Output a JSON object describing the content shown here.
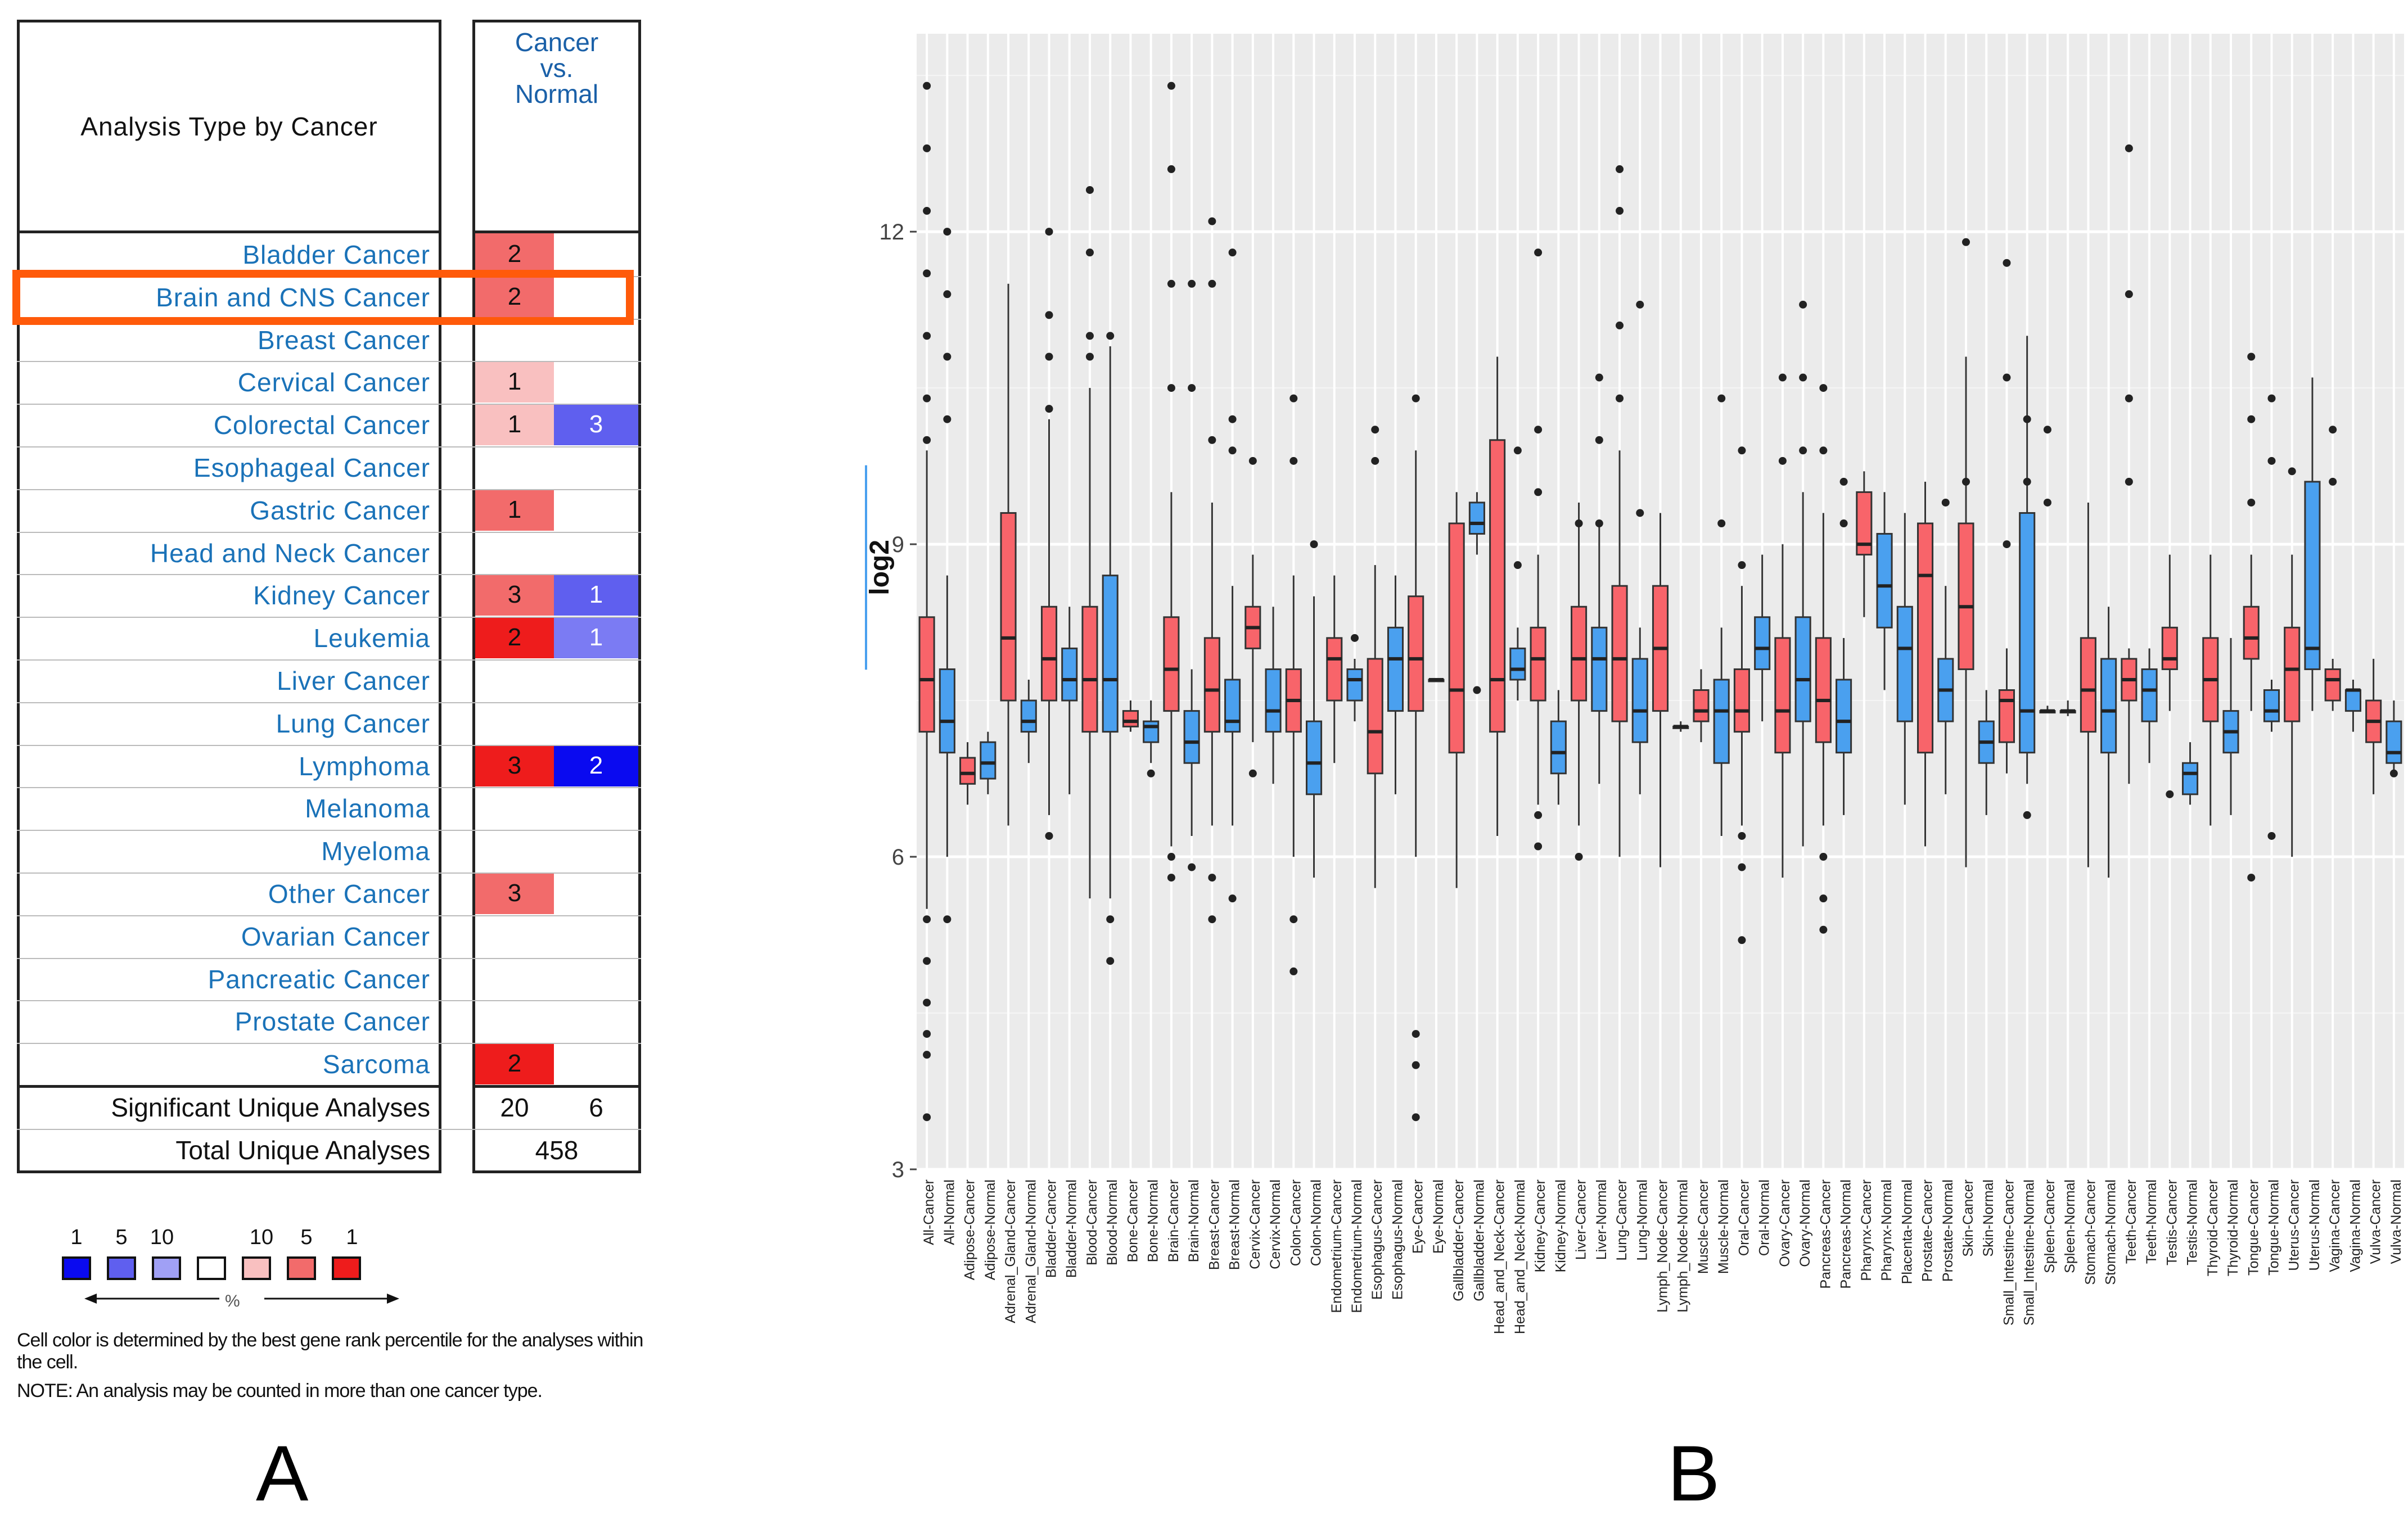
{
  "panel_a": {
    "letter": "A",
    "header_analysis_type": "Analysis Type by Cancer",
    "header_cancer_vs_normal": "Cancer\nvs.\nNormal",
    "rows": [
      {
        "name": "Bladder Cancer",
        "up": "2",
        "down": ""
      },
      {
        "name": "Brain and CNS Cancer",
        "up": "2",
        "down": ""
      },
      {
        "name": "Breast Cancer",
        "up": "",
        "down": ""
      },
      {
        "name": "Cervical Cancer",
        "up": "1",
        "down": ""
      },
      {
        "name": "Colorectal Cancer",
        "up": "1",
        "down": "3"
      },
      {
        "name": "Esophageal Cancer",
        "up": "",
        "down": ""
      },
      {
        "name": "Gastric Cancer",
        "up": "1",
        "down": ""
      },
      {
        "name": "Head and Neck Cancer",
        "up": "",
        "down": ""
      },
      {
        "name": "Kidney Cancer",
        "up": "3",
        "down": "1"
      },
      {
        "name": "Leukemia",
        "up": "2",
        "down": "1"
      },
      {
        "name": "Liver Cancer",
        "up": "",
        "down": ""
      },
      {
        "name": "Lung Cancer",
        "up": "",
        "down": ""
      },
      {
        "name": "Lymphoma",
        "up": "3",
        "down": "2"
      },
      {
        "name": "Melanoma",
        "up": "",
        "down": ""
      },
      {
        "name": "Myeloma",
        "up": "",
        "down": ""
      },
      {
        "name": "Other Cancer",
        "up": "3",
        "down": ""
      },
      {
        "name": "Ovarian Cancer",
        "up": "",
        "down": ""
      },
      {
        "name": "Pancreatic Cancer",
        "up": "",
        "down": ""
      },
      {
        "name": "Prostate Cancer",
        "up": "",
        "down": ""
      },
      {
        "name": "Sarcoma",
        "up": "2",
        "down": ""
      }
    ],
    "cell_colors": {
      "up": [
        "#f26b6b",
        "#f26b6b",
        "",
        "#f9c0c0",
        "#f9c0c0",
        "",
        "#f26b6b",
        "",
        "#f26b6b",
        "#ee1c1c",
        "",
        "",
        "#ee1c1c",
        "",
        "",
        "#f26b6b",
        "",
        "",
        "",
        "#ee1c1c"
      ],
      "down": [
        "",
        "",
        "",
        "",
        "#5f5fef",
        "",
        "",
        "",
        "#5f5fef",
        "#7b7bf3",
        "",
        "",
        "#0a0af0",
        "",
        "",
        "",
        "",
        "",
        "",
        ""
      ]
    },
    "footer": {
      "significant_label": "Significant Unique Analyses",
      "significant_up": "20",
      "significant_down": "6",
      "total_label": "Total Unique Analyses",
      "total_value": "458"
    },
    "legend": {
      "numbers": [
        "1",
        "5",
        "10",
        "10",
        "5",
        "1"
      ],
      "colors": [
        "#0a0af0",
        "#5f5fef",
        "#a0a0f5",
        "#ffffff",
        "#f9c0c0",
        "#f26b6b",
        "#ee1c1c"
      ],
      "pct": "%"
    },
    "note_cell_color": "Cell color is determined by the best gene rank percentile for the analyses within the cell.",
    "note_counted": "NOTE: An analysis may be counted in more than one cancer type."
  },
  "panel_b": {
    "letter": "B"
  },
  "chart_data": {
    "type": "box",
    "title": "",
    "xlabel": "",
    "ylabel": "log2",
    "ylim": [
      3,
      13.9
    ],
    "yticks": [
      3,
      6,
      9,
      12
    ],
    "grid": true,
    "colors": {
      "Cancer": "#f8646a",
      "Normal": "#4aa0ef",
      "background": "#ebebeb",
      "gridline": "#ffffff"
    },
    "categories": [
      "All-Cancer",
      "All-Normal",
      "Adipose-Cancer",
      "Adipose-Normal",
      "Adrenal_Gland-Cancer",
      "Adrenal_Gland-Normal",
      "Bladder-Cancer",
      "Bladder-Normal",
      "Blood-Cancer",
      "Blood-Normal",
      "Bone-Cancer",
      "Bone-Normal",
      "Brain-Cancer",
      "Brain-Normal",
      "Breast-Cancer",
      "Breast-Normal",
      "Cervix-Cancer",
      "Cervix-Normal",
      "Colon-Cancer",
      "Colon-Normal",
      "Endometrium-Cancer",
      "Endometrium-Normal",
      "Esophagus-Cancer",
      "Esophagus-Normal",
      "Eye-Cancer",
      "Eye-Normal",
      "Gallbladder-Cancer",
      "Gallbladder-Normal",
      "Head_and_Neck-Cancer",
      "Head_and_Neck-Normal",
      "Kidney-Cancer",
      "Kidney-Normal",
      "Liver-Cancer",
      "Liver-Normal",
      "Lung-Cancer",
      "Lung-Normal",
      "Lymph_Node-Cancer",
      "Lymph_Node-Normal",
      "Muscle-Cancer",
      "Muscle-Normal",
      "Oral-Cancer",
      "Oral-Normal",
      "Ovary-Cancer",
      "Ovary-Normal",
      "Pancreas-Cancer",
      "Pancreas-Normal",
      "Pharynx-Cancer",
      "Pharynx-Normal",
      "Placenta-Normal",
      "Prostate-Cancer",
      "Prostate-Normal",
      "Skin-Cancer",
      "Skin-Normal",
      "Small_Intestine-Cancer",
      "Small_Intestine-Normal",
      "Spleen-Cancer",
      "Spleen-Normal",
      "Stomach-Cancer",
      "Stomach-Normal",
      "Teeth-Cancer",
      "Teeth-Normal",
      "Testis-Cancer",
      "Testis-Normal",
      "Thyroid-Cancer",
      "Thyroid-Normal",
      "Tongue-Cancer",
      "Tongue-Normal",
      "Uterus-Cancer",
      "Uterus-Normal",
      "Vagina-Cancer",
      "Vagina-Normal",
      "Vulva-Cancer",
      "Vulva-Normal"
    ],
    "boxes": [
      [
        5.5,
        7.2,
        7.7,
        8.3,
        9.9
      ],
      [
        6.0,
        7.0,
        7.3,
        7.8,
        8.7
      ],
      [
        6.5,
        6.7,
        6.8,
        6.95,
        7.1
      ],
      [
        6.6,
        6.75,
        6.9,
        7.1,
        7.2
      ],
      [
        6.3,
        7.5,
        8.1,
        9.3,
        11.5
      ],
      [
        6.9,
        7.2,
        7.3,
        7.5,
        7.7
      ],
      [
        6.4,
        7.5,
        7.9,
        8.4,
        10.2
      ],
      [
        6.6,
        7.5,
        7.7,
        8.0,
        8.4
      ],
      [
        5.6,
        7.2,
        7.7,
        8.4,
        10.5
      ],
      [
        5.6,
        7.2,
        7.7,
        8.7,
        10.9
      ],
      [
        7.2,
        7.25,
        7.3,
        7.4,
        7.5
      ],
      [
        6.9,
        7.1,
        7.25,
        7.3,
        7.5
      ],
      [
        6.1,
        7.4,
        7.8,
        8.3,
        9.5
      ],
      [
        6.2,
        6.9,
        7.1,
        7.4,
        7.8
      ],
      [
        6.3,
        7.2,
        7.6,
        8.1,
        9.4
      ],
      [
        6.3,
        7.2,
        7.3,
        7.7,
        8.6
      ],
      [
        7.1,
        8.0,
        8.2,
        8.4,
        8.9
      ],
      [
        6.7,
        7.2,
        7.4,
        7.8,
        8.4
      ],
      [
        6.0,
        7.2,
        7.5,
        7.8,
        8.7
      ],
      [
        5.8,
        6.6,
        6.9,
        7.3,
        8.5
      ],
      [
        6.9,
        7.5,
        7.9,
        8.1,
        8.7
      ],
      [
        7.3,
        7.5,
        7.7,
        7.8,
        7.9
      ],
      [
        5.7,
        6.8,
        7.2,
        7.9,
        8.8
      ],
      [
        6.6,
        7.4,
        7.9,
        8.2,
        8.7
      ],
      [
        6.0,
        7.4,
        7.9,
        8.5,
        9.9
      ],
      [
        7.7,
        7.7,
        7.7,
        7.7,
        7.7
      ],
      [
        5.7,
        7.0,
        7.6,
        9.2,
        9.5
      ],
      [
        8.9,
        9.1,
        9.2,
        9.4,
        9.5
      ],
      [
        6.2,
        7.2,
        7.7,
        10.0,
        10.8
      ],
      [
        7.5,
        7.7,
        7.8,
        8.0,
        8.2
      ],
      [
        6.5,
        7.5,
        7.9,
        8.2,
        8.9
      ],
      [
        6.5,
        6.8,
        7.0,
        7.3,
        7.6
      ],
      [
        6.3,
        7.5,
        7.9,
        8.4,
        9.4
      ],
      [
        6.7,
        7.4,
        7.9,
        8.2,
        9.2
      ],
      [
        6.0,
        7.3,
        7.9,
        8.6,
        9.9
      ],
      [
        6.6,
        7.1,
        7.4,
        7.9,
        8.2
      ],
      [
        5.9,
        7.4,
        8.0,
        8.6,
        9.3
      ],
      [
        7.2,
        7.25,
        7.25,
        7.25,
        7.3
      ],
      [
        7.1,
        7.3,
        7.4,
        7.6,
        7.8
      ],
      [
        6.2,
        6.9,
        7.4,
        7.7,
        8.2
      ],
      [
        6.3,
        7.2,
        7.4,
        7.8,
        8.6
      ],
      [
        7.3,
        7.8,
        8.0,
        8.3,
        8.9
      ],
      [
        5.8,
        7.0,
        7.4,
        8.1,
        9.0
      ],
      [
        6.1,
        7.3,
        7.7,
        8.3,
        9.5
      ],
      [
        6.3,
        7.1,
        7.5,
        8.1,
        9.3
      ],
      [
        6.4,
        7.0,
        7.3,
        7.7,
        8.1
      ],
      [
        8.3,
        8.9,
        9.0,
        9.5,
        9.7
      ],
      [
        7.6,
        8.2,
        8.6,
        9.1,
        9.5
      ],
      [
        6.5,
        7.3,
        8.0,
        8.4,
        9.3
      ],
      [
        6.1,
        7.0,
        8.7,
        9.2,
        9.6
      ],
      [
        6.6,
        7.3,
        7.6,
        7.9,
        8.6
      ],
      [
        5.9,
        7.8,
        8.4,
        9.2,
        10.8
      ],
      [
        6.4,
        6.9,
        7.1,
        7.3,
        7.6
      ],
      [
        6.8,
        7.1,
        7.5,
        7.6,
        8.0
      ],
      [
        6.7,
        7.0,
        7.4,
        9.3,
        11.0
      ],
      [
        7.4,
        7.4,
        7.4,
        7.4,
        7.45
      ],
      [
        7.35,
        7.4,
        7.4,
        7.4,
        7.5
      ],
      [
        5.9,
        7.2,
        7.6,
        8.1,
        9.4
      ],
      [
        5.8,
        7.0,
        7.4,
        7.9,
        8.4
      ],
      [
        6.7,
        7.5,
        7.7,
        7.9,
        8.0
      ],
      [
        6.9,
        7.3,
        7.6,
        7.8,
        8.0
      ],
      [
        7.4,
        7.8,
        7.9,
        8.2,
        8.9
      ],
      [
        6.5,
        6.6,
        6.8,
        6.9,
        7.1
      ],
      [
        6.3,
        7.3,
        7.7,
        8.1,
        8.9
      ],
      [
        6.4,
        7.0,
        7.2,
        7.4,
        8.1
      ],
      [
        7.4,
        7.9,
        8.1,
        8.4,
        8.9
      ],
      [
        7.2,
        7.3,
        7.4,
        7.6,
        7.7
      ],
      [
        6.0,
        7.3,
        7.8,
        8.2,
        8.9
      ],
      [
        7.4,
        7.8,
        8.0,
        9.6,
        10.6
      ],
      [
        7.4,
        7.5,
        7.7,
        7.8,
        7.9
      ],
      [
        7.2,
        7.4,
        7.6,
        7.6,
        7.7
      ],
      [
        6.6,
        7.1,
        7.3,
        7.5,
        7.9
      ],
      [
        6.8,
        6.9,
        7.0,
        7.3,
        7.5
      ]
    ],
    "outliers": [
      [
        13.4,
        12.8,
        12.2,
        11.6,
        11.0,
        10.4,
        10.0,
        5.4,
        5.0,
        4.6,
        4.3,
        4.1,
        3.5
      ],
      [
        12.0,
        11.4,
        10.8,
        10.2,
        5.4
      ],
      [],
      [],
      [],
      [],
      [
        12.0,
        11.2,
        10.8,
        10.3,
        6.2
      ],
      [],
      [
        12.4,
        11.8,
        11.0,
        10.8
      ],
      [
        11.0,
        5.4,
        5.0
      ],
      [],
      [
        6.8
      ],
      [
        13.4,
        12.6,
        11.5,
        10.5,
        6.0,
        5.8
      ],
      [
        11.5,
        10.5,
        5.9
      ],
      [
        12.1,
        11.5,
        10.0,
        5.8,
        5.4
      ],
      [
        11.8,
        10.2,
        9.9,
        5.6
      ],
      [
        9.8,
        6.8
      ],
      [],
      [
        10.4,
        9.8,
        5.4,
        4.9
      ],
      [
        9.0
      ],
      [],
      [
        8.1
      ],
      [
        10.1,
        9.8
      ],
      [],
      [
        10.4,
        4.3,
        4.0,
        3.5
      ],
      [],
      [],
      [
        7.6
      ],
      [],
      [
        9.9,
        8.8
      ],
      [
        11.8,
        10.1,
        9.5,
        6.4,
        6.1
      ],
      [],
      [
        9.2,
        6.0
      ],
      [
        10.6,
        10.0,
        9.2
      ],
      [
        12.6,
        12.2,
        11.1,
        10.4
      ],
      [
        11.3,
        9.3
      ],
      [],
      [],
      [],
      [
        10.4,
        9.2
      ],
      [
        9.9,
        8.8,
        6.2,
        5.9,
        5.2
      ],
      [],
      [
        10.6,
        9.8
      ],
      [
        11.3,
        10.6,
        9.9
      ],
      [
        10.5,
        9.9,
        6.0,
        5.6,
        5.3
      ],
      [
        9.6,
        9.2
      ],
      [],
      [],
      [],
      [],
      [
        9.4
      ],
      [
        11.9,
        9.6
      ],
      [],
      [
        11.7,
        10.6,
        9.0
      ],
      [
        10.2,
        9.6,
        6.4
      ],
      [
        10.1,
        9.4
      ],
      [],
      [],
      [],
      [
        12.8,
        11.4,
        10.4,
        9.6
      ],
      [],
      [
        6.6
      ],
      [],
      [],
      [],
      [
        10.8,
        10.2,
        9.4,
        5.8
      ],
      [
        10.4,
        9.8,
        6.2
      ],
      [
        9.7
      ],
      [],
      [
        10.1,
        9.6
      ],
      [],
      [],
      [
        6.8
      ],
      [],
      []
    ]
  }
}
